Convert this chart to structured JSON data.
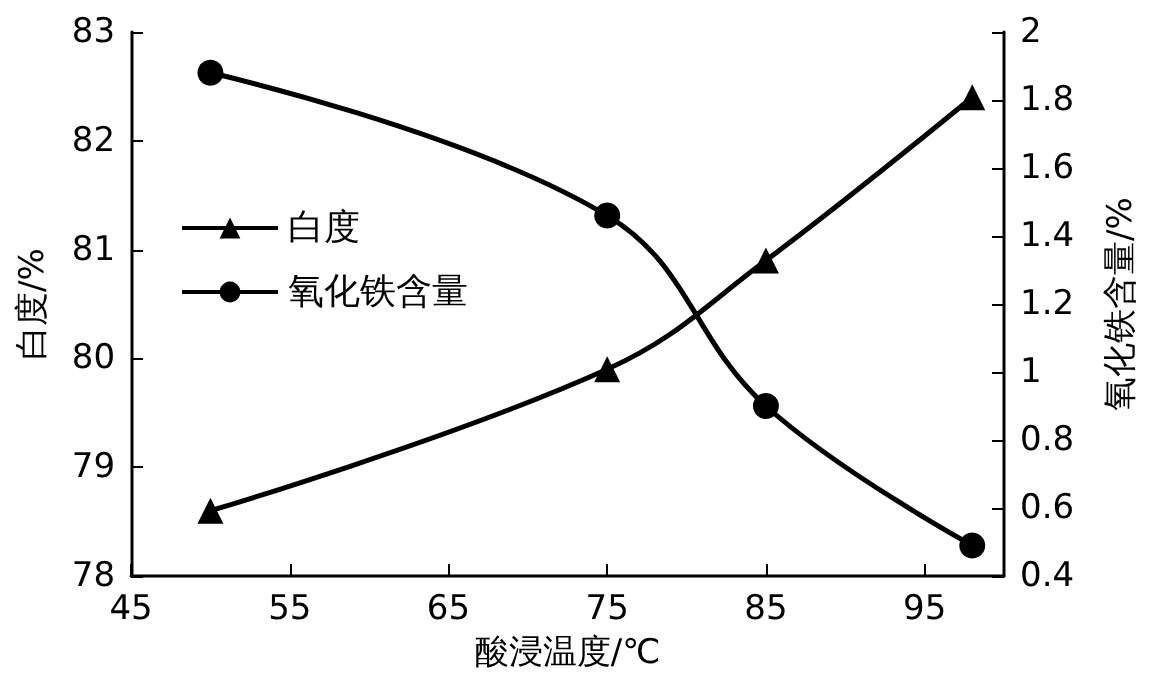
{
  "chart_data": {
    "type": "line",
    "xlabel": "酸浸温度/℃",
    "ylabel": "白度/%",
    "y2label": "氧化铁含量/%",
    "x": [
      50,
      75,
      85,
      98
    ],
    "series": [
      {
        "name": "白度",
        "color": "#000000",
        "marker": "triangle",
        "values": [
          78.6,
          79.9,
          80.9,
          82.4
        ]
      },
      {
        "name": "氧化铁含量",
        "color": "#000000",
        "marker": "circle",
        "axis": "y2",
        "values": [
          1.88,
          1.46,
          0.9,
          0.49
        ]
      }
    ],
    "xlim": [
      45,
      100
    ],
    "xticks": [
      45,
      55,
      65,
      75,
      85,
      95
    ],
    "ylim": [
      78,
      83
    ],
    "yticks": [
      78,
      79,
      80,
      81,
      82,
      83
    ],
    "y2lim": [
      0.4,
      2
    ],
    "y2ticks": [
      0.4,
      0.6,
      0.8,
      1,
      1.2,
      1.4,
      1.6,
      1.8,
      2
    ],
    "legend": "left",
    "grid": false,
    "line_style": "solid"
  }
}
